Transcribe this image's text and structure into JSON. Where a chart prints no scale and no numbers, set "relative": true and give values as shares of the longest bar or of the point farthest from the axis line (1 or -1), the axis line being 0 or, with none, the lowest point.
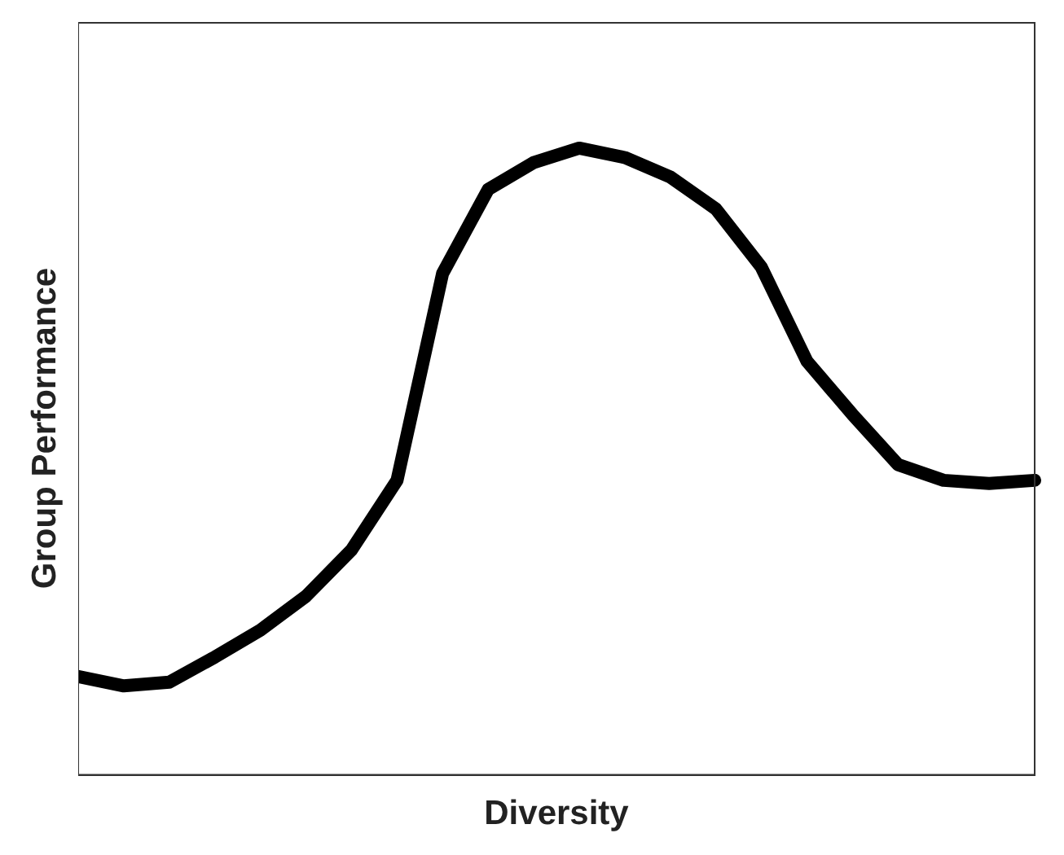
{
  "chart_data": {
    "type": "line",
    "relative": true,
    "xlabel": "Diversity",
    "ylabel": "Group Performance",
    "categories": [
      null,
      null,
      null,
      null,
      null,
      null,
      null,
      null,
      null,
      null,
      null,
      null,
      null,
      null,
      null,
      null,
      null,
      null,
      null,
      null,
      null,
      null
    ],
    "series": [
      {
        "color": "#000000",
        "values": [
          0.157,
          0.142,
          0.148,
          0.188,
          0.231,
          0.285,
          0.359,
          0.47,
          0.8,
          0.934,
          0.977,
          1,
          0.985,
          0.954,
          0.903,
          0.81,
          0.66,
          0.575,
          0.495,
          0.47,
          0.465,
          0.47
        ]
      }
    ],
    "marker": "none",
    "line_style": "solid",
    "grid": false,
    "legend": false,
    "tick_labels": false
  }
}
